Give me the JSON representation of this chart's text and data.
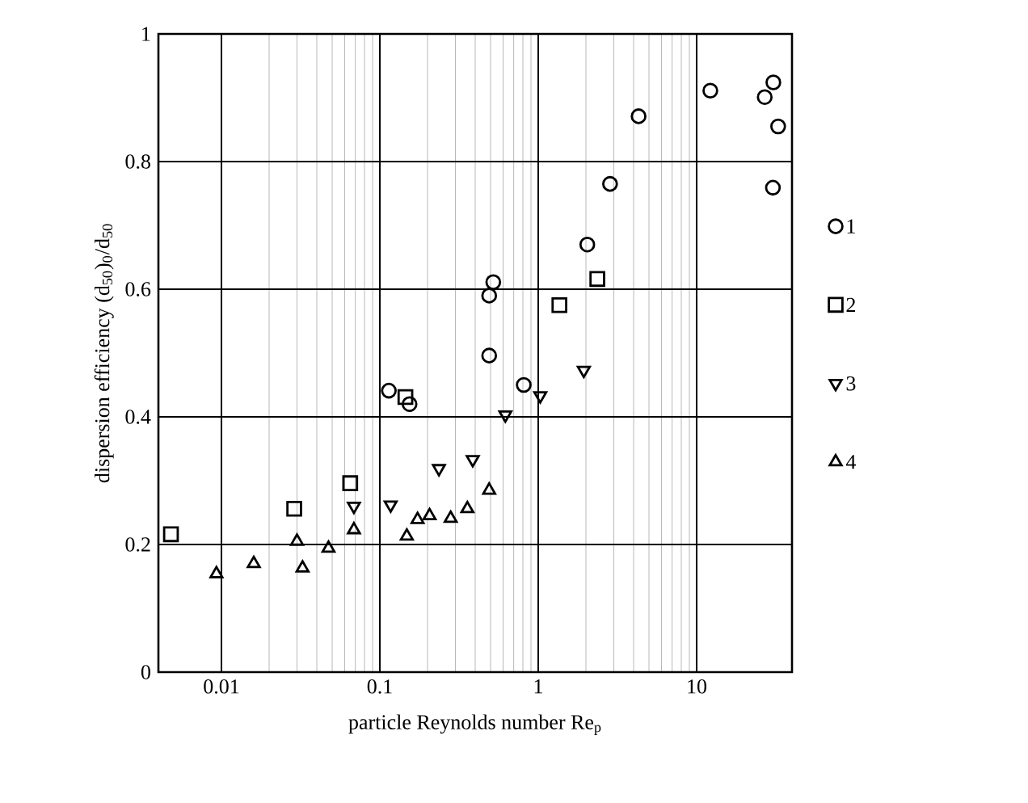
{
  "chart_data": {
    "type": "scatter",
    "xlabel": "particle Reynolds number  Re$_{p}$",
    "ylabel": "dispersion efficiency  (d$_{50}$)$_{0}$/d$_{50}$",
    "log": "x",
    "grid": true,
    "legend": "right",
    "xlim": [
      0.004,
      40
    ],
    "ylim": [
      0,
      1
    ],
    "xticks": [
      0.01,
      0.1,
      1,
      10
    ],
    "yticks": [
      0,
      0.2,
      0.4,
      0.6,
      0.8,
      1
    ],
    "series": [
      {
        "name": "1",
        "color": "#000000",
        "marker": "circle",
        "x": [
          12.2,
          4.3,
          2.84,
          2.04,
          0.52,
          0.49,
          0.49,
          0.114,
          0.154,
          0.81,
          30.5,
          26.9,
          32.7,
          30.3
        ],
        "values": [
          0.911,
          0.871,
          0.765,
          0.67,
          0.611,
          0.59,
          0.496,
          0.441,
          0.42,
          0.45,
          0.924,
          0.901,
          0.855,
          0.759
        ]
      },
      {
        "name": "2",
        "color": "#000000",
        "marker": "square",
        "x": [
          2.36,
          1.36,
          0.145,
          0.065,
          0.0288,
          0.0048
        ],
        "values": [
          0.616,
          0.575,
          0.431,
          0.296,
          0.256,
          0.216
        ]
      },
      {
        "name": "3",
        "color": "#000000",
        "marker": "triangle-down",
        "x": [
          1.94,
          1.03,
          0.62,
          0.386,
          0.236,
          0.117,
          0.0686
        ],
        "values": [
          0.473,
          0.433,
          0.403,
          0.333,
          0.319,
          0.262,
          0.26
        ]
      },
      {
        "name": "4",
        "color": "#000000",
        "marker": "triangle",
        "x": [
          0.0686,
          0.0093,
          0.016,
          0.03,
          0.0325,
          0.0474,
          0.148,
          0.173,
          0.206,
          0.28,
          0.357,
          0.49
        ],
        "values": [
          0.223,
          0.154,
          0.17,
          0.205,
          0.163,
          0.194,
          0.213,
          0.239,
          0.245,
          0.241,
          0.256,
          0.285
        ]
      }
    ]
  }
}
